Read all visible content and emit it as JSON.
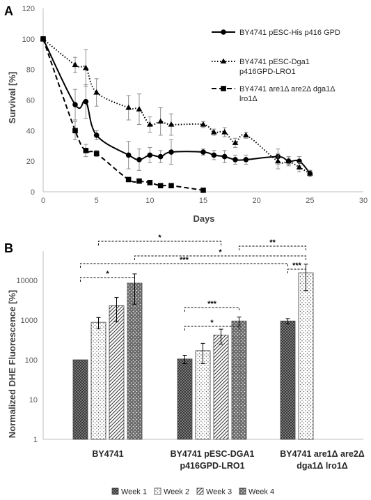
{
  "panels": {
    "a": "A",
    "b": "B"
  },
  "chart_data": [
    {
      "type": "line",
      "xlabel": "Days",
      "ylabel": "Survival [%]",
      "xlim": [
        0,
        30
      ],
      "ylim": [
        0,
        120
      ],
      "xticks": [
        "0",
        "5",
        "10",
        "15",
        "20",
        "25",
        "30"
      ],
      "yticks": [
        "0",
        "20",
        "40",
        "60",
        "80",
        "100",
        "120"
      ],
      "legend_position": "top-right",
      "series": [
        {
          "name": "BY4741 pESC-His p416 GPD",
          "style": "solid",
          "marker": "circle",
          "x": [
            0,
            3,
            4,
            5,
            8,
            9,
            10,
            11,
            12,
            15,
            16,
            17,
            18,
            19,
            22,
            23,
            24,
            25
          ],
          "y": [
            100,
            57,
            59,
            37,
            24,
            21,
            24,
            23,
            26,
            26,
            24,
            23,
            21,
            21,
            23,
            20,
            20,
            12
          ],
          "err": [
            0,
            10,
            11,
            3,
            9,
            7,
            5,
            4,
            8,
            2,
            3,
            4,
            3,
            3,
            5,
            3,
            3,
            2
          ]
        },
        {
          "name": "BY4741 pESC-Dga1 p416GPD-LRO1",
          "style": "dotted",
          "marker": "triangle",
          "x": [
            0,
            3,
            4,
            5,
            8,
            9,
            10,
            11,
            12,
            15,
            16,
            17,
            18,
            19,
            22,
            23,
            24,
            25
          ],
          "y": [
            100,
            83,
            81,
            65,
            55,
            54,
            44,
            46,
            44,
            44,
            39,
            39,
            32,
            37,
            20,
            20,
            16,
            12
          ],
          "err": [
            0,
            5,
            12,
            9,
            8,
            10,
            5,
            9,
            7,
            2,
            2,
            3,
            3,
            2,
            5,
            2,
            3,
            2
          ]
        },
        {
          "name": "BY4741 are1Δ are2Δ dga1Δ lro1Δ",
          "style": "dashed",
          "marker": "square",
          "x": [
            0,
            3,
            4,
            5,
            8,
            9,
            10,
            11,
            12,
            15
          ],
          "y": [
            100,
            40,
            27,
            25,
            8,
            7,
            6,
            4,
            4,
            1
          ],
          "err": [
            0,
            6,
            4,
            2,
            1,
            1,
            1,
            1,
            1,
            0.5
          ]
        }
      ]
    },
    {
      "type": "bar",
      "ylabel": "Normalized DHE Fluorescence [%]",
      "yscale": "log",
      "ylim": [
        1,
        100000
      ],
      "yticks": [
        "1",
        "10",
        "100",
        "1000",
        "10000"
      ],
      "categories": [
        "BY4741",
        "BY4741 pESC-DGA1 p416GPD-LRO1",
        "BY4741 are1Δ are2Δ dga1Δ lro1Δ"
      ],
      "category_lines": [
        [
          "BY4741"
        ],
        [
          "BY4741 pESC-DGA1",
          "p416GPD-LRO1"
        ],
        [
          "BY4741 are1Δ are2Δ",
          "dga1Δ lro1Δ"
        ]
      ],
      "legend_position": "bottom",
      "series": [
        {
          "name": "Week 1",
          "pattern": "crosshatch",
          "values": [
            100,
            105,
            950
          ],
          "err": [
            0,
            25,
            140
          ]
        },
        {
          "name": "Week 2",
          "pattern": "dots",
          "values": [
            880,
            170,
            15500
          ],
          "err": [
            280,
            90,
            10000
          ]
        },
        {
          "name": "Week 3",
          "pattern": "diagonal",
          "values": [
            2300,
            420,
            null
          ],
          "err": [
            1400,
            170,
            null
          ]
        },
        {
          "name": "Week 4",
          "pattern": "dotted-dark",
          "values": [
            8500,
            950,
            null
          ],
          "err": [
            6000,
            240,
            null
          ]
        }
      ],
      "significance": [
        {
          "label": "*",
          "from": [
            1,
            0
          ],
          "to": [
            1,
            3
          ],
          "level": 1000
        },
        {
          "label": "***",
          "from": [
            1,
            0
          ],
          "to": [
            1,
            3
          ],
          "level": 1000
        },
        {
          "label": "***",
          "from": [
            2,
            0
          ],
          "to": [
            2,
            1
          ],
          "level": 1000
        },
        {
          "label": "*",
          "from": [
            0,
            0
          ],
          "to": [
            0,
            3
          ],
          "level": 1000
        },
        {
          "label": "***",
          "from": [
            0,
            0
          ],
          "to": [
            2,
            0
          ],
          "level": 1000
        },
        {
          "label": "*",
          "from": [
            0,
            3
          ],
          "to": [
            2,
            1
          ],
          "level": 1000
        },
        {
          "label": "**",
          "from": [
            1,
            3
          ],
          "to": [
            2,
            1
          ],
          "level": 1000
        },
        {
          "label": "*",
          "from": [
            0,
            1
          ],
          "to": [
            1,
            2
          ],
          "level": 1000
        }
      ]
    }
  ]
}
